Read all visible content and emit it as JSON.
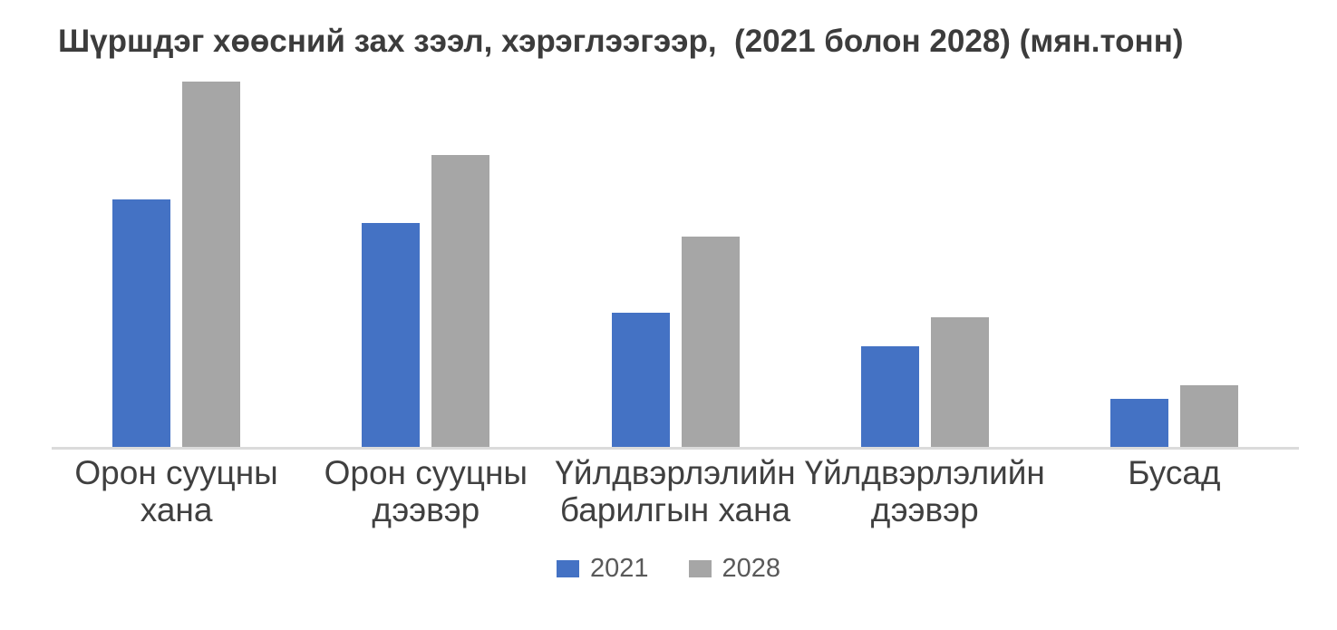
{
  "page": {
    "background_color": "#ffffff"
  },
  "chart_data": {
    "type": "bar",
    "title": "Шүршдэг хөөсний зах зээл, хэрэглээгээр,  (2021 болон 2028) (мян.тонн)",
    "title_color": "#3c3c3c",
    "categories": [
      "Орон сууцны хана",
      "Орон сууцны дээвэр",
      "Үйлдвэрлэлийн барилгын хана",
      "Үйлдвэрлэлийн дээвэр",
      "Бусад"
    ],
    "series": [
      {
        "name": "2021",
        "color": "#4472C4",
        "values": [
          67.7,
          61.3,
          36.7,
          27.5,
          13.2
        ]
      },
      {
        "name": "2028",
        "color": "#A6A6A6",
        "values": [
          100,
          79.9,
          57.6,
          35.5,
          16.9
        ]
      }
    ],
    "xlabel": "",
    "ylabel": "",
    "ylim": [
      0,
      100
    ],
    "y_axis_visible": false,
    "gridlines": false,
    "value_labels_shown": false,
    "values_are_relative_estimates": true,
    "legend_position": "bottom",
    "axis_line_color": "#dbdbdb",
    "category_label_color": "#404040",
    "legend_text_color": "#595959"
  }
}
